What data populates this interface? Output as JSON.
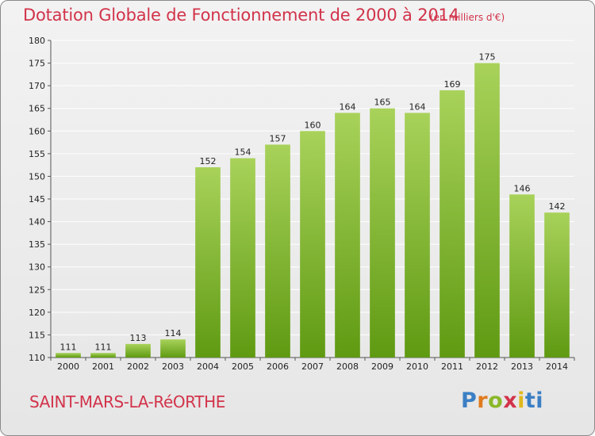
{
  "header": {
    "title": "Dotation Globale de Fonctionnement de 2000 à 2014",
    "subtitle": "(en milliers d'€)"
  },
  "footer": {
    "commune": "SAINT-MARS-LA-RéORTHE",
    "logo": [
      "P",
      "r",
      "o",
      "x",
      "i",
      "ti"
    ]
  },
  "colors": {
    "title": "#d2334a",
    "bar_top": "#a8d25a",
    "bar_bottom": "#5f9a12",
    "grid": "#ffffff",
    "axis": "#555555"
  },
  "chart_data": {
    "type": "bar",
    "title": "Dotation Globale de Fonctionnement de 2000 à 2014",
    "subtitle": "(en milliers d'€)",
    "categories": [
      "2000",
      "2001",
      "2002",
      "2003",
      "2004",
      "2005",
      "2006",
      "2007",
      "2008",
      "2009",
      "2010",
      "2011",
      "2012",
      "2013",
      "2014"
    ],
    "values": [
      111,
      111,
      113,
      114,
      152,
      154,
      157,
      160,
      164,
      165,
      164,
      169,
      175,
      146,
      142
    ],
    "ylim": [
      110,
      180
    ],
    "yticks": [
      110,
      115,
      120,
      125,
      130,
      135,
      140,
      145,
      150,
      155,
      160,
      165,
      170,
      175,
      180
    ],
    "grid": true,
    "xlabel": "",
    "ylabel": ""
  }
}
